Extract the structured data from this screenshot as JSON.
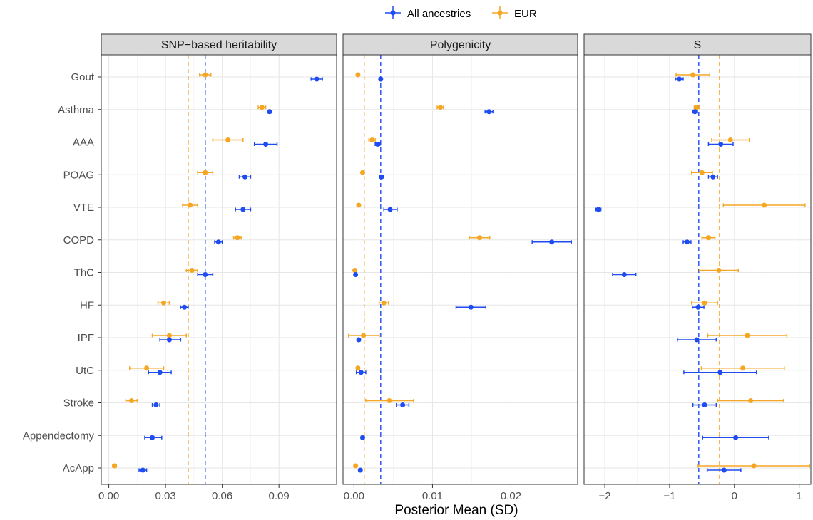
{
  "chart_data": {
    "type": "scatter",
    "xlabel": "Posterior Mean (SD)",
    "legend": {
      "placement": "top",
      "entries": [
        {
          "name": "All ancestries",
          "color": "#1f4cf0"
        },
        {
          "name": "EUR",
          "color": "#f5a623"
        }
      ]
    },
    "categories": [
      "Gout",
      "Asthma",
      "AAA",
      "POAG",
      "VTE",
      "COPD",
      "ThC",
      "HF",
      "IPF",
      "UtC",
      "Stroke",
      "Appendectomy",
      "AcApp"
    ],
    "panels": [
      {
        "title": "SNP−based heritability",
        "xlim": [
          -0.004,
          0.1205
        ],
        "xticks": [
          0,
          0.03,
          0.06,
          0.09
        ],
        "xtick_labels": [
          "0.00",
          "0.03",
          "0.06",
          "0.09"
        ],
        "vlines": [
          {
            "series": "All ancestries",
            "x": 0.051
          },
          {
            "series": "EUR",
            "x": 0.042
          }
        ],
        "series": [
          {
            "name": "All ancestries",
            "points": [
              {
                "category": "Gout",
                "x": 0.11,
                "lo": 0.107,
                "hi": 0.113
              },
              {
                "category": "Asthma",
                "x": 0.085,
                "lo": 0.084,
                "hi": 0.086
              },
              {
                "category": "AAA",
                "x": 0.083,
                "lo": 0.077,
                "hi": 0.089
              },
              {
                "category": "POAG",
                "x": 0.072,
                "lo": 0.069,
                "hi": 0.075
              },
              {
                "category": "VTE",
                "x": 0.071,
                "lo": 0.067,
                "hi": 0.075
              },
              {
                "category": "COPD",
                "x": 0.058,
                "lo": 0.056,
                "hi": 0.06
              },
              {
                "category": "ThC",
                "x": 0.051,
                "lo": 0.047,
                "hi": 0.055
              },
              {
                "category": "HF",
                "x": 0.04,
                "lo": 0.038,
                "hi": 0.042
              },
              {
                "category": "IPF",
                "x": 0.032,
                "lo": 0.027,
                "hi": 0.038
              },
              {
                "category": "UtC",
                "x": 0.027,
                "lo": 0.021,
                "hi": 0.033
              },
              {
                "category": "Stroke",
                "x": 0.025,
                "lo": 0.023,
                "hi": 0.027
              },
              {
                "category": "Appendectomy",
                "x": 0.023,
                "lo": 0.019,
                "hi": 0.028
              },
              {
                "category": "AcApp",
                "x": 0.018,
                "lo": 0.016,
                "hi": 0.02
              }
            ]
          },
          {
            "name": "EUR",
            "points": [
              {
                "category": "Gout",
                "x": 0.051,
                "lo": 0.048,
                "hi": 0.054
              },
              {
                "category": "Asthma",
                "x": 0.081,
                "lo": 0.079,
                "hi": 0.083
              },
              {
                "category": "AAA",
                "x": 0.063,
                "lo": 0.055,
                "hi": 0.071
              },
              {
                "category": "POAG",
                "x": 0.051,
                "lo": 0.047,
                "hi": 0.055
              },
              {
                "category": "VTE",
                "x": 0.043,
                "lo": 0.039,
                "hi": 0.047
              },
              {
                "category": "COPD",
                "x": 0.068,
                "lo": 0.066,
                "hi": 0.07
              },
              {
                "category": "ThC",
                "x": 0.044,
                "lo": 0.041,
                "hi": 0.047
              },
              {
                "category": "HF",
                "x": 0.029,
                "lo": 0.026,
                "hi": 0.032
              },
              {
                "category": "IPF",
                "x": 0.032,
                "lo": 0.023,
                "hi": 0.041
              },
              {
                "category": "UtC",
                "x": 0.02,
                "lo": 0.011,
                "hi": 0.029
              },
              {
                "category": "Stroke",
                "x": 0.012,
                "lo": 0.009,
                "hi": 0.015
              },
              {
                "category": "Appendectomy",
                "x": null,
                "lo": null,
                "hi": null
              },
              {
                "category": "AcApp",
                "x": 0.003,
                "lo": 0.002,
                "hi": 0.004
              }
            ]
          }
        ]
      },
      {
        "title": "Polygenicity",
        "xlim": [
          -0.0014,
          0.0285
        ],
        "xticks": [
          0,
          0.01,
          0.02
        ],
        "xtick_labels": [
          "0.00",
          "0.01",
          "0.02"
        ],
        "vlines": [
          {
            "series": "All ancestries",
            "x": 0.0034
          },
          {
            "series": "EUR",
            "x": 0.0013
          }
        ],
        "series": [
          {
            "name": "All ancestries",
            "points": [
              {
                "category": "Gout",
                "x": 0.0034,
                "lo": 0.0032,
                "hi": 0.0036
              },
              {
                "category": "Asthma",
                "x": 0.0172,
                "lo": 0.0167,
                "hi": 0.0177
              },
              {
                "category": "AAA",
                "x": 0.003,
                "lo": 0.0027,
                "hi": 0.0033
              },
              {
                "category": "POAG",
                "x": 0.0035,
                "lo": 0.0033,
                "hi": 0.0037
              },
              {
                "category": "VTE",
                "x": 0.0046,
                "lo": 0.0038,
                "hi": 0.0055
              },
              {
                "category": "COPD",
                "x": 0.0252,
                "lo": 0.0227,
                "hi": 0.0277
              },
              {
                "category": "ThC",
                "x": 0.0002,
                "lo": 0.0001,
                "hi": 0.0003
              },
              {
                "category": "HF",
                "x": 0.0149,
                "lo": 0.013,
                "hi": 0.0168
              },
              {
                "category": "IPF",
                "x": 0.0006,
                "lo": 0.0004,
                "hi": 0.0008
              },
              {
                "category": "UtC",
                "x": 0.0009,
                "lo": 0.0003,
                "hi": 0.0015
              },
              {
                "category": "Stroke",
                "x": 0.0062,
                "lo": 0.0054,
                "hi": 0.007
              },
              {
                "category": "Appendectomy",
                "x": 0.0011,
                "lo": 0.0009,
                "hi": 0.0013
              },
              {
                "category": "AcApp",
                "x": 0.0008,
                "lo": 0.0007,
                "hi": 0.0009
              }
            ]
          },
          {
            "name": "EUR",
            "points": [
              {
                "category": "Gout",
                "x": 0.0005,
                "lo": 0.0004,
                "hi": 0.0006
              },
              {
                "category": "Asthma",
                "x": 0.011,
                "lo": 0.0106,
                "hi": 0.0114
              },
              {
                "category": "AAA",
                "x": 0.0023,
                "lo": 0.0019,
                "hi": 0.0027
              },
              {
                "category": "POAG",
                "x": 0.0011,
                "lo": 0.001,
                "hi": 0.0012
              },
              {
                "category": "VTE",
                "x": 0.0006,
                "lo": 0.0005,
                "hi": 0.0007
              },
              {
                "category": "COPD",
                "x": 0.016,
                "lo": 0.0147,
                "hi": 0.0173
              },
              {
                "category": "ThC",
                "x": 0.0001,
                "lo": 0.0,
                "hi": 0.0002
              },
              {
                "category": "HF",
                "x": 0.0038,
                "lo": 0.0032,
                "hi": 0.0044
              },
              {
                "category": "IPF",
                "x": 0.0012,
                "lo": -0.0007,
                "hi": 0.0032
              },
              {
                "category": "UtC",
                "x": 0.0005,
                "lo": 0.0003,
                "hi": 0.0007
              },
              {
                "category": "Stroke",
                "x": 0.0045,
                "lo": 0.0015,
                "hi": 0.0076
              },
              {
                "category": "Appendectomy",
                "x": null,
                "lo": null,
                "hi": null
              },
              {
                "category": "AcApp",
                "x": 0.0002,
                "lo": 0.0001,
                "hi": 0.0003
              }
            ]
          }
        ]
      },
      {
        "title": "S",
        "xlim": [
          -2.32,
          1.18
        ],
        "xticks": [
          -2,
          -1,
          0,
          1
        ],
        "xtick_labels": [
          "−2",
          "−1",
          "0",
          "1"
        ],
        "vlines": [
          {
            "series": "All ancestries",
            "x": -0.55
          },
          {
            "series": "EUR",
            "x": -0.23
          }
        ],
        "series": [
          {
            "name": "All ancestries",
            "points": [
              {
                "category": "Gout",
                "x": -0.85,
                "lo": -0.91,
                "hi": -0.79
              },
              {
                "category": "Asthma",
                "x": -0.61,
                "lo": -0.65,
                "hi": -0.57
              },
              {
                "category": "AAA",
                "x": -0.21,
                "lo": -0.4,
                "hi": -0.02
              },
              {
                "category": "POAG",
                "x": -0.33,
                "lo": -0.4,
                "hi": -0.26
              },
              {
                "category": "VTE",
                "x": -2.1,
                "lo": -2.14,
                "hi": -2.06
              },
              {
                "category": "COPD",
                "x": -0.73,
                "lo": -0.79,
                "hi": -0.67
              },
              {
                "category": "ThC",
                "x": -1.7,
                "lo": -1.88,
                "hi": -1.52
              },
              {
                "category": "HF",
                "x": -0.56,
                "lo": -0.65,
                "hi": -0.47
              },
              {
                "category": "IPF",
                "x": -0.58,
                "lo": -0.88,
                "hi": -0.28
              },
              {
                "category": "UtC",
                "x": -0.22,
                "lo": -0.78,
                "hi": 0.34
              },
              {
                "category": "Stroke",
                "x": -0.46,
                "lo": -0.64,
                "hi": -0.28
              },
              {
                "category": "Appendectomy",
                "x": 0.02,
                "lo": -0.49,
                "hi": 0.53
              },
              {
                "category": "AcApp",
                "x": -0.16,
                "lo": -0.42,
                "hi": 0.1
              }
            ]
          },
          {
            "name": "EUR",
            "points": [
              {
                "category": "Gout",
                "x": -0.64,
                "lo": -0.9,
                "hi": -0.38
              },
              {
                "category": "Asthma",
                "x": -0.58,
                "lo": -0.62,
                "hi": -0.54
              },
              {
                "category": "AAA",
                "x": -0.06,
                "lo": -0.35,
                "hi": 0.23
              },
              {
                "category": "POAG",
                "x": -0.5,
                "lo": -0.66,
                "hi": -0.34
              },
              {
                "category": "VTE",
                "x": 0.46,
                "lo": -0.17,
                "hi": 1.09
              },
              {
                "category": "COPD",
                "x": -0.4,
                "lo": -0.5,
                "hi": -0.3
              },
              {
                "category": "ThC",
                "x": -0.24,
                "lo": -0.54,
                "hi": 0.06
              },
              {
                "category": "HF",
                "x": -0.46,
                "lo": -0.66,
                "hi": -0.26
              },
              {
                "category": "IPF",
                "x": 0.2,
                "lo": -0.41,
                "hi": 0.81
              },
              {
                "category": "UtC",
                "x": 0.13,
                "lo": -0.51,
                "hi": 0.77
              },
              {
                "category": "Stroke",
                "x": 0.25,
                "lo": -0.26,
                "hi": 0.76
              },
              {
                "category": "Appendectomy",
                "x": null,
                "lo": null,
                "hi": null
              },
              {
                "category": "AcApp",
                "x": 0.3,
                "lo": -0.56,
                "hi": 1.16
              }
            ]
          }
        ]
      }
    ]
  }
}
